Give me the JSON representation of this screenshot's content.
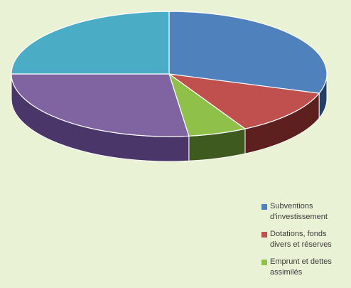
{
  "chart_data": {
    "type": "pie",
    "style": "3d",
    "title": "",
    "slices": [
      {
        "label": "Subventions d'investissement",
        "value": 30,
        "color": "#4f81bd",
        "side_color": "#243f63"
      },
      {
        "label": "Dotations, fonds divers et réserves",
        "value": 12,
        "color": "#c0504d",
        "side_color": "#5e201e"
      },
      {
        "label": "Emprunt et dettes assimilés",
        "value": 6,
        "color": "#8fc04a",
        "side_color": "#3f5a1e"
      },
      {
        "label": "",
        "value": 27,
        "color": "#8064a2",
        "side_color": "#4a3669"
      },
      {
        "label": "",
        "value": 25,
        "color": "#4bacc6",
        "side_color": "#245b69"
      }
    ],
    "legend": {
      "placement": "bottom-right",
      "items": [
        {
          "label_line1": "Subventions",
          "label_line2": "d'investissement",
          "color": "#4f81bd"
        },
        {
          "label_line1": "Dotations, fonds",
          "label_line2": "divers et réserves",
          "color": "#c0504d"
        },
        {
          "label_line1": "Emprunt et dettes",
          "label_line2": "assimilés",
          "color": "#8fc04a"
        }
      ]
    }
  }
}
